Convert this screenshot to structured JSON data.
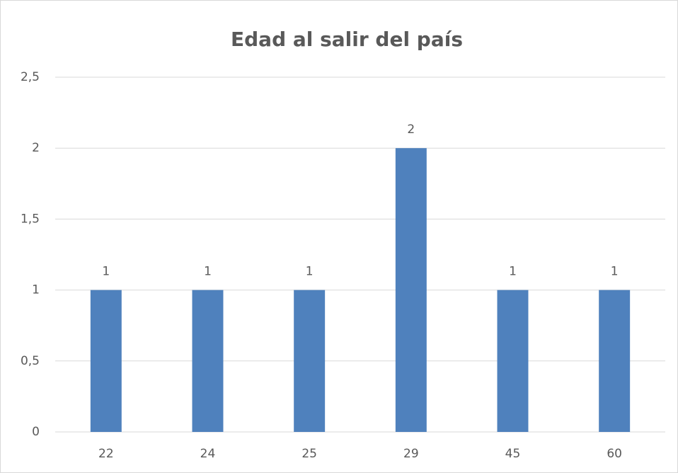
{
  "chart_data": {
    "type": "bar",
    "title": "Edad al salir del país",
    "categories": [
      "22",
      "24",
      "25",
      "29",
      "45",
      "60"
    ],
    "values": [
      1,
      1,
      1,
      2,
      1,
      1
    ],
    "color": "#4f81bd",
    "ylim": [
      0,
      2.5
    ],
    "yticks": [
      0,
      {
        "value": 0.5,
        "label": "0,5"
      },
      1,
      {
        "value": 1.5,
        "label": "1,5"
      },
      2,
      {
        "value": 2.5,
        "label": "2,5"
      }
    ],
    "grid": true,
    "data_labels": true
  }
}
